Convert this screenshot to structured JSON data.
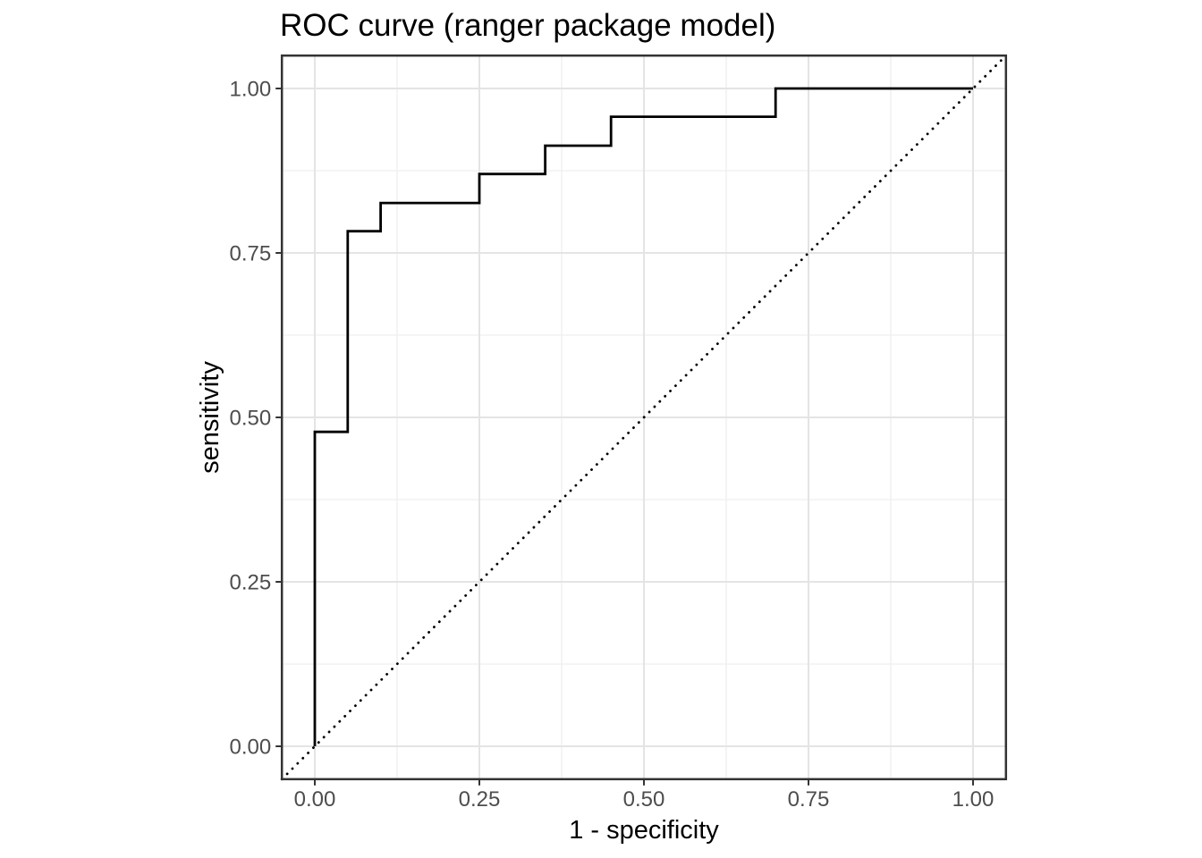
{
  "figure": {
    "background": "#FFFFFF"
  },
  "chart_data": {
    "type": "line",
    "title": "ROC curve (ranger package model)",
    "xlabel": "1 - specificity",
    "ylabel": "sensitivity",
    "xlim": [
      0,
      1
    ],
    "ylim": [
      0,
      1
    ],
    "expansion": 0.05,
    "grid": "major+minor",
    "legend": "none",
    "x_ticks": {
      "values": [
        0,
        0.25,
        0.5,
        0.75,
        1
      ],
      "labels": [
        "0.00",
        "0.25",
        "0.50",
        "0.75",
        "1.00"
      ]
    },
    "y_ticks": {
      "values": [
        0,
        0.25,
        0.5,
        0.75,
        1
      ],
      "labels": [
        "0.00",
        "0.25",
        "0.50",
        "0.75",
        "1.00"
      ]
    },
    "minor_tick_values": [
      0.125,
      0.375,
      0.625,
      0.875
    ],
    "series": [
      {
        "name": "ROC curve",
        "type": "step",
        "line_style": "solid",
        "color": "#000000",
        "points": [
          [
            0.0,
            0.0
          ],
          [
            0.0,
            0.478
          ],
          [
            0.05,
            0.478
          ],
          [
            0.05,
            0.783
          ],
          [
            0.1,
            0.783
          ],
          [
            0.1,
            0.826
          ],
          [
            0.25,
            0.826
          ],
          [
            0.25,
            0.87
          ],
          [
            0.35,
            0.87
          ],
          [
            0.35,
            0.913
          ],
          [
            0.45,
            0.913
          ],
          [
            0.45,
            0.957
          ],
          [
            0.7,
            0.957
          ],
          [
            0.7,
            1.0
          ],
          [
            1.0,
            1.0
          ]
        ]
      },
      {
        "name": "chance diagonal",
        "type": "line",
        "line_style": "dotted",
        "color": "#000000",
        "points": [
          [
            -0.05,
            -0.05
          ],
          [
            1.05,
            1.05
          ]
        ]
      }
    ],
    "colors": {
      "panel_background": "#FFFFFF",
      "panel_border": "#333333",
      "grid_major": "#E4E4E4",
      "grid_minor": "#EFEFEF",
      "axis_tick": "#333333",
      "tick_label": "#4D4D4D",
      "axis_title": "#000000",
      "title": "#000000"
    }
  }
}
